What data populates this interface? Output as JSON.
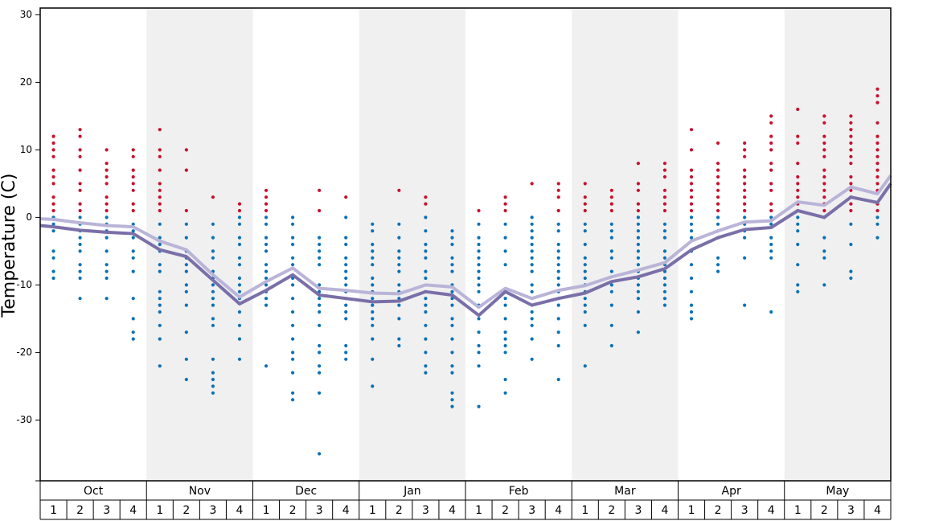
{
  "chart_data": {
    "type": "dotline",
    "y_label": "Temperature (C)",
    "months": [
      "Oct",
      "Nov",
      "Dec",
      "Jan",
      "Feb",
      "Mar",
      "Apr",
      "May"
    ],
    "weeks": [
      "1",
      "2",
      "3",
      "4"
    ],
    "ylim": [
      -39,
      31
    ],
    "yticks": [
      30,
      20,
      10,
      0,
      -10,
      -20,
      -30
    ],
    "xlim": [
      0,
      32
    ],
    "band_fill": "#f0f0f0",
    "warm_color": "#c8102e",
    "cold_color": "#0a71b4",
    "lines": [
      {
        "color": "#b9b4d8",
        "x": [
          0,
          0.5,
          1.5,
          2.5,
          3.5,
          4.5,
          5.5,
          6.5,
          7.5,
          8.5,
          9.5,
          10.5,
          11.5,
          12.5,
          13.5,
          14.5,
          15.5,
          16.5,
          17.5,
          18.5,
          19.5,
          20.5,
          21.5,
          22.5,
          23.5,
          24.5,
          25.5,
          26.5,
          27.5,
          28.5,
          29.5,
          30.5,
          31.5,
          32
        ],
        "values": [
          -0.2,
          -0.3,
          -0.8,
          -1.2,
          -1.4,
          -3.5,
          -4.8,
          -8.5,
          -11.8,
          -9.5,
          -7.5,
          -10.5,
          -10.8,
          -11.2,
          -11.3,
          -10,
          -10.3,
          -13.3,
          -10.5,
          -12,
          -10.8,
          -10.1,
          -8.8,
          -7.8,
          -6.7,
          -3.5,
          -2,
          -0.7,
          -0.5,
          2.3,
          1.8,
          4.5,
          3.5,
          6.2
        ]
      },
      {
        "color": "#7a6fa8",
        "x": [
          0,
          0.5,
          1.5,
          2.5,
          3.5,
          4.5,
          5.5,
          6.5,
          7.5,
          8.5,
          9.5,
          10.5,
          11.5,
          12.5,
          13.5,
          14.5,
          15.5,
          16.5,
          17.5,
          18.5,
          19.5,
          20.5,
          21.5,
          22.5,
          23.5,
          24.5,
          25.5,
          26.5,
          27.5,
          28.5,
          29.5,
          30.5,
          31.5,
          32
        ],
        "values": [
          -1.2,
          -1.4,
          -1.9,
          -2.2,
          -2.4,
          -4.8,
          -5.8,
          -9.3,
          -12.8,
          -10.8,
          -8.5,
          -11.5,
          -12,
          -12.5,
          -12.4,
          -11,
          -11.5,
          -14.5,
          -11,
          -13,
          -12,
          -11.2,
          -9.5,
          -8.8,
          -7.6,
          -4.8,
          -3,
          -1.8,
          -1.5,
          1,
          0,
          3,
          2.2,
          5
        ]
      }
    ],
    "dots": [
      {
        "values": [
          12,
          11,
          10,
          9,
          7,
          6,
          5,
          3,
          2,
          1,
          0,
          -1,
          -2,
          -5,
          -6,
          -8,
          -9
        ]
      },
      {
        "values": [
          13,
          12,
          10,
          9,
          7,
          5,
          4,
          2,
          1,
          0,
          -1,
          -2,
          -3,
          -4,
          -5,
          -7,
          -8,
          -9,
          -12
        ]
      },
      {
        "values": [
          10,
          8,
          7,
          6,
          5,
          3,
          2,
          1,
          0,
          -1,
          -2,
          -3,
          -5,
          -7,
          -8,
          -9,
          -12
        ]
      },
      {
        "values": [
          10,
          9,
          7,
          6,
          5,
          4,
          2,
          1,
          -1,
          -2,
          -3,
          -5,
          -6,
          -8,
          -12,
          -15,
          -17,
          -18
        ]
      },
      {
        "values": [
          13,
          10,
          9,
          7,
          5,
          4,
          3,
          2,
          1,
          -1,
          -3,
          -4,
          -5,
          -7,
          -8,
          -11,
          -12,
          -13,
          -14,
          -16,
          -18,
          -22
        ]
      },
      {
        "values": [
          10,
          7,
          1,
          -1,
          -3,
          -5,
          -6,
          -7,
          -8,
          -10,
          -11,
          -13,
          -17,
          -21,
          -24
        ]
      },
      {
        "values": [
          3,
          -1,
          -3,
          -5,
          -6,
          -8,
          -9,
          -10,
          -11,
          -12,
          -13,
          -15,
          -16,
          -21,
          -23,
          -24,
          -25,
          -26
        ]
      },
      {
        "values": [
          2,
          1,
          0,
          -1,
          -3,
          -4,
          -6,
          -7,
          -9,
          -10,
          -11,
          -12,
          -14,
          -16,
          -18,
          -21
        ]
      },
      {
        "values": [
          4,
          3,
          2,
          1,
          0,
          -1,
          -3,
          -4,
          -5,
          -7,
          -8,
          -9,
          -10,
          -11,
          -12,
          -13,
          -22
        ]
      },
      {
        "values": [
          0,
          -1,
          -3,
          -4,
          -6,
          -7,
          -9,
          -10,
          -12,
          -14,
          -16,
          -18,
          -20,
          -21,
          -23,
          -26,
          -27
        ]
      },
      {
        "values": [
          4,
          1,
          -3,
          -4,
          -5,
          -6,
          -7,
          -10,
          -11,
          -12,
          -13,
          -14,
          -16,
          -19,
          -20,
          -22,
          -23,
          -26,
          -35
        ]
      },
      {
        "values": [
          3,
          0,
          -3,
          -4,
          -6,
          -7,
          -8,
          -9,
          -10,
          -11,
          -12,
          -13,
          -14,
          -15,
          -19,
          -20,
          -21
        ]
      },
      {
        "values": [
          -1,
          -2,
          -4,
          -5,
          -6,
          -7,
          -9,
          -10,
          -11,
          -12,
          -13,
          -14,
          -15,
          -16,
          -18,
          -21,
          -25
        ]
      },
      {
        "values": [
          4,
          -1,
          -3,
          -5,
          -6,
          -7,
          -8,
          -10,
          -11,
          -12,
          -13,
          -15,
          -18,
          -19
        ]
      },
      {
        "values": [
          3,
          2,
          0,
          -2,
          -4,
          -5,
          -6,
          -8,
          -9,
          -11,
          -12,
          -13,
          -14,
          -16,
          -18,
          -20,
          -22,
          -23
        ]
      },
      {
        "values": [
          -2,
          -3,
          -4,
          -6,
          -7,
          -8,
          -10,
          -11,
          -12,
          -13,
          -15,
          -16,
          -18,
          -20,
          -22,
          -23,
          -26,
          -27,
          -28
        ]
      },
      {
        "values": [
          1,
          -1,
          -3,
          -4,
          -5,
          -6,
          -7,
          -8,
          -9,
          -10,
          -11,
          -13,
          -15,
          -17,
          -19,
          -20,
          -22,
          -28
        ]
      },
      {
        "values": [
          3,
          2,
          1,
          -1,
          -3,
          -5,
          -7,
          -11,
          -12,
          -13,
          -15,
          -17,
          -18,
          -19,
          -20,
          -24,
          -26
        ]
      },
      {
        "values": [
          5,
          0,
          -1,
          -2,
          -3,
          -4,
          -5,
          -6,
          -7,
          -8,
          -10,
          -11,
          -12,
          -14,
          -15,
          -16,
          -18,
          -21
        ]
      },
      {
        "values": [
          5,
          4,
          3,
          1,
          -1,
          -2,
          -4,
          -5,
          -6,
          -7,
          -8,
          -9,
          -10,
          -11,
          -12,
          -13,
          -15,
          -17,
          -19,
          -24
        ]
      },
      {
        "values": [
          5,
          3,
          2,
          1,
          -1,
          -2,
          -4,
          -6,
          -7,
          -8,
          -9,
          -10,
          -11,
          -12,
          -13,
          -14,
          -16,
          -22
        ]
      },
      {
        "values": [
          4,
          3,
          2,
          1,
          -1,
          -2,
          -3,
          -5,
          -6,
          -8,
          -10,
          -11,
          -13,
          -16,
          -19
        ]
      },
      {
        "values": [
          8,
          5,
          4,
          2,
          1,
          0,
          -1,
          -2,
          -3,
          -4,
          -5,
          -6,
          -7,
          -8,
          -9,
          -10,
          -11,
          -12,
          -14,
          -17
        ]
      },
      {
        "values": [
          8,
          7,
          6,
          4,
          3,
          2,
          1,
          -1,
          -2,
          -3,
          -5,
          -6,
          -7,
          -8,
          -9,
          -10,
          -11,
          -12,
          -13
        ]
      },
      {
        "values": [
          13,
          10,
          7,
          6,
          5,
          4,
          3,
          2,
          1,
          0,
          -1,
          -2,
          -3,
          -5,
          -7,
          -9,
          -11,
          -13,
          -14,
          -15
        ]
      },
      {
        "values": [
          11,
          8,
          7,
          6,
          5,
          4,
          3,
          2,
          1,
          0,
          -1,
          -2,
          -3,
          -6,
          -7,
          -8
        ]
      },
      {
        "values": [
          11,
          10,
          9,
          7,
          6,
          5,
          4,
          3,
          2,
          1,
          0,
          -1,
          -2,
          -3,
          -6,
          -13
        ]
      },
      {
        "values": [
          15,
          14,
          12,
          11,
          10,
          8,
          7,
          5,
          4,
          2,
          1,
          0,
          -1,
          -3,
          -4,
          -5,
          -6,
          -14
        ]
      },
      {
        "values": [
          16,
          12,
          11,
          8,
          6,
          5,
          4,
          3,
          2,
          1,
          0,
          -1,
          -2,
          -4,
          -7,
          -10,
          -11
        ]
      },
      {
        "values": [
          15,
          14,
          12,
          11,
          10,
          9,
          7,
          6,
          5,
          4,
          3,
          2,
          1,
          0,
          -3,
          -5,
          -6,
          -10
        ]
      },
      {
        "values": [
          15,
          14,
          13,
          12,
          11,
          10,
          9,
          8,
          6,
          5,
          4,
          3,
          2,
          1,
          -1,
          -4,
          -8,
          -9
        ]
      },
      {
        "values": [
          19,
          18,
          17,
          14,
          12,
          11,
          10,
          9,
          8,
          7,
          6,
          5,
          4,
          2,
          1,
          0,
          -1,
          -3
        ]
      }
    ]
  }
}
